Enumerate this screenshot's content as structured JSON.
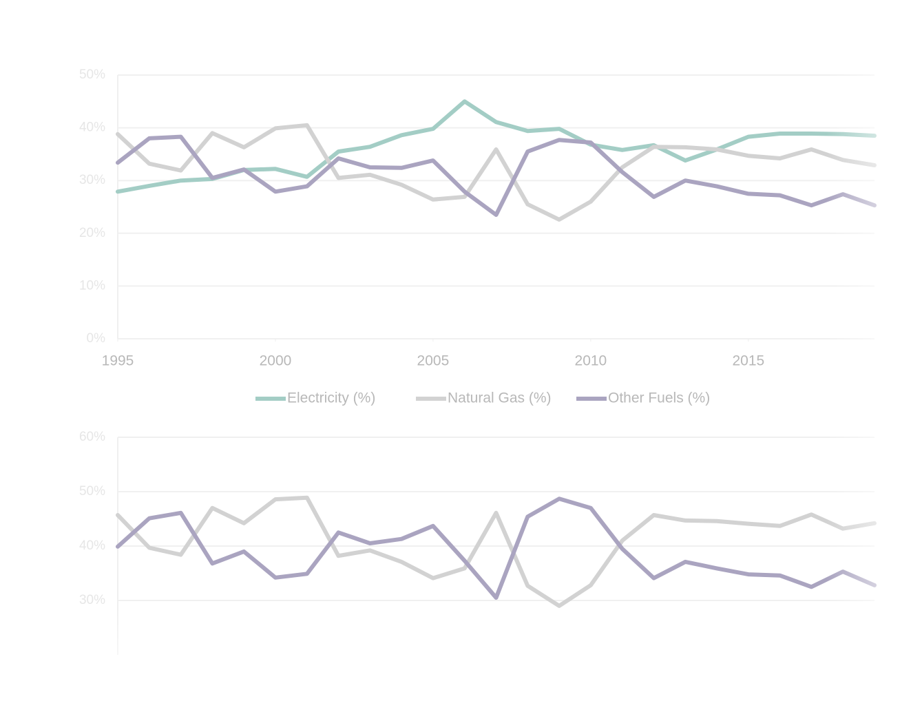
{
  "chart_data": [
    {
      "type": "line",
      "x": [
        1995,
        1996,
        1997,
        1998,
        1999,
        2000,
        2001,
        2002,
        2003,
        2004,
        2005,
        2006,
        2007,
        2008,
        2009,
        2010,
        2011,
        2012,
        2013,
        2014,
        2015,
        2016,
        2017,
        2018,
        2019
      ],
      "xlim": [
        1995,
        2019
      ],
      "xticks": [
        1995,
        2000,
        2005,
        2010,
        2015
      ],
      "ylim": [
        0,
        50
      ],
      "yticks": [
        {
          "value": 0,
          "label": "0%"
        },
        {
          "value": 10,
          "label": "10%"
        },
        {
          "value": 20,
          "label": "20%"
        },
        {
          "value": 30,
          "label": "30%"
        },
        {
          "value": 40,
          "label": "40%"
        },
        {
          "value": 50,
          "label": "50%"
        }
      ],
      "grid": true,
      "legend": "bottom",
      "series": [
        {
          "name": "Electricity (%)",
          "color": "#a3cdc5",
          "values": [
            27.9,
            29.0,
            30.0,
            30.3,
            32.0,
            32.2,
            30.7,
            35.5,
            36.4,
            38.6,
            39.8,
            45.0,
            41.1,
            39.4,
            39.8,
            36.8,
            35.8,
            36.7,
            33.8,
            35.9,
            38.3,
            38.9,
            38.9,
            38.8,
            38.5
          ]
        },
        {
          "name": "Natural Gas (%)",
          "color": "#d2d2d2",
          "values": [
            38.8,
            33.2,
            31.9,
            39.0,
            36.3,
            39.9,
            40.5,
            30.5,
            31.1,
            29.2,
            26.4,
            26.9,
            35.9,
            25.5,
            22.6,
            26.0,
            32.5,
            36.4,
            36.3,
            35.9,
            34.7,
            34.2,
            35.9,
            33.9,
            32.9
          ]
        },
        {
          "name": "Other Fuels (%)",
          "color": "#aaa4c0",
          "values": [
            33.4,
            38.0,
            38.3,
            30.5,
            32.1,
            27.9,
            28.9,
            34.2,
            32.5,
            32.4,
            33.8,
            27.9,
            23.5,
            35.5,
            37.7,
            37.2,
            31.6,
            26.9,
            30.0,
            28.9,
            27.5,
            27.2,
            25.3,
            27.4,
            25.3
          ]
        }
      ]
    },
    {
      "type": "line",
      "x": [
        1995,
        1996,
        1997,
        1998,
        1999,
        2000,
        2001,
        2002,
        2003,
        2004,
        2005,
        2006,
        2007,
        2008,
        2009,
        2010,
        2011,
        2012,
        2013,
        2014,
        2015,
        2016,
        2017,
        2018,
        2019
      ],
      "xlim": [
        1995,
        2019
      ],
      "ylim": [
        20,
        60
      ],
      "yticks": [
        {
          "value": 30,
          "label": "30%"
        },
        {
          "value": 40,
          "label": "40%"
        },
        {
          "value": 50,
          "label": "50%"
        },
        {
          "value": 60,
          "label": "60%"
        }
      ],
      "grid": true,
      "series": [
        {
          "color": "#d2d2d2",
          "values": [
            45.7,
            39.7,
            38.4,
            47.0,
            44.2,
            48.6,
            48.9,
            38.2,
            39.2,
            37.1,
            34.1,
            35.9,
            46.1,
            32.7,
            29.0,
            32.8,
            41.0,
            45.7,
            44.7,
            44.6,
            44.1,
            43.7,
            45.8,
            43.2,
            44.2
          ]
        },
        {
          "color": "#aaa4c0",
          "values": [
            39.9,
            45.1,
            46.1,
            36.8,
            39.0,
            34.2,
            34.9,
            42.5,
            40.5,
            41.3,
            43.7,
            37.3,
            30.5,
            45.4,
            48.7,
            47.0,
            39.5,
            34.1,
            37.1,
            35.9,
            34.8,
            34.6,
            32.5,
            35.3,
            32.8
          ]
        }
      ]
    }
  ]
}
